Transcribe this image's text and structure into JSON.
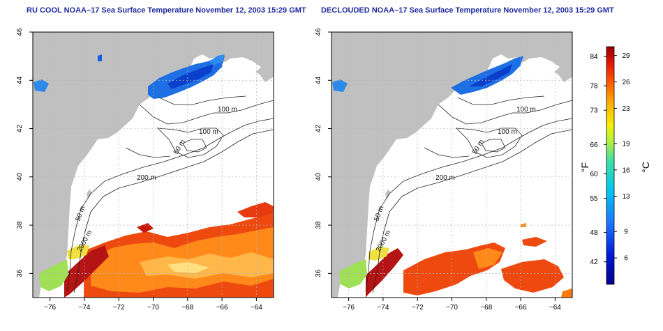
{
  "panels": [
    {
      "title": "RU COOL NOAA–17 Sea Surface Temperature November 12, 2003 15:29 GMT",
      "mode": "full"
    },
    {
      "title": "DECLOUDED NOAA–17 Sea Surface Temperature November 12, 2003 15:29 GMT",
      "mode": "declouded"
    }
  ],
  "axes": {
    "x_ticks": [
      -76,
      -74,
      -72,
      -70,
      -68,
      -66,
      -64
    ],
    "x_tick_labels": [
      "−76",
      "−74",
      "−72",
      "−70",
      "−68",
      "−66",
      "−64"
    ],
    "y_ticks": [
      36,
      38,
      40,
      42,
      44,
      46
    ],
    "y_tick_labels": [
      "36",
      "38",
      "40",
      "42",
      "44",
      "46"
    ],
    "lon_range": [
      -77,
      -63
    ],
    "lat_range": [
      35,
      46
    ]
  },
  "contour_labels": [
    "100 m",
    "100 m",
    "50 m",
    "200 m",
    "50 m",
    "2000 m"
  ],
  "colorbar": {
    "f_label": "°F",
    "c_label": "°C",
    "f_ticks": [
      84,
      78,
      73,
      66,
      60,
      55,
      48,
      42
    ],
    "c_ticks": [
      29,
      26,
      23,
      19,
      16,
      13,
      9,
      6
    ],
    "c_range": [
      3,
      30
    ]
  },
  "colors": {
    "land": "#c0c0c0",
    "ocean": "#ffffff",
    "grid": "#b4b4b4",
    "title": "#1f2a9e",
    "contour": "#222222"
  }
}
